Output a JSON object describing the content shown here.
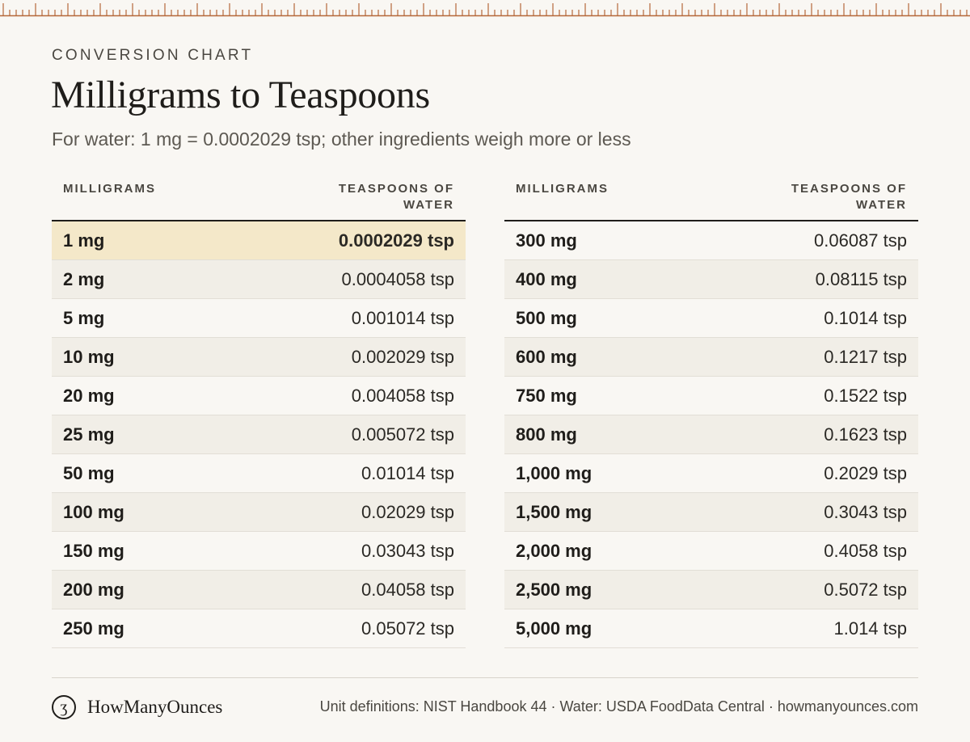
{
  "header": {
    "eyebrow": "CONVERSION CHART",
    "title": "Milligrams to Teaspoons",
    "subtitle": "For water: 1 mg = 0.0002029 tsp; other ingredients weigh more or less"
  },
  "table": {
    "col_mg": "MILLIGRAMS",
    "col_tsp_line1": "TEASPOONS OF",
    "col_tsp_line2": "WATER",
    "left_rows": [
      {
        "mg": "1 mg",
        "tsp": "0.0002029 tsp"
      },
      {
        "mg": "2 mg",
        "tsp": "0.0004058 tsp"
      },
      {
        "mg": "5 mg",
        "tsp": "0.001014 tsp"
      },
      {
        "mg": "10 mg",
        "tsp": "0.002029 tsp"
      },
      {
        "mg": "20 mg",
        "tsp": "0.004058 tsp"
      },
      {
        "mg": "25 mg",
        "tsp": "0.005072 tsp"
      },
      {
        "mg": "50 mg",
        "tsp": "0.01014 tsp"
      },
      {
        "mg": "100 mg",
        "tsp": "0.02029 tsp"
      },
      {
        "mg": "150 mg",
        "tsp": "0.03043 tsp"
      },
      {
        "mg": "200 mg",
        "tsp": "0.04058 tsp"
      },
      {
        "mg": "250 mg",
        "tsp": "0.05072 tsp"
      }
    ],
    "right_rows": [
      {
        "mg": "300 mg",
        "tsp": "0.06087 tsp"
      },
      {
        "mg": "400 mg",
        "tsp": "0.08115 tsp"
      },
      {
        "mg": "500 mg",
        "tsp": "0.1014 tsp"
      },
      {
        "mg": "600 mg",
        "tsp": "0.1217 tsp"
      },
      {
        "mg": "750 mg",
        "tsp": "0.1522 tsp"
      },
      {
        "mg": "800 mg",
        "tsp": "0.1623 tsp"
      },
      {
        "mg": "1,000 mg",
        "tsp": "0.2029 tsp"
      },
      {
        "mg": "1,500 mg",
        "tsp": "0.3043 tsp"
      },
      {
        "mg": "2,000 mg",
        "tsp": "0.4058 tsp"
      },
      {
        "mg": "2,500 mg",
        "tsp": "0.5072 tsp"
      },
      {
        "mg": "5,000 mg",
        "tsp": "1.014 tsp"
      }
    ]
  },
  "footer": {
    "logo_glyph": "ʒ",
    "logo_icon": "howmanyounces-logo-icon",
    "brand": "HowManyOunces",
    "sources": "Unit definitions: NIST Handbook 44 · Water: USDA FoodData Central · howmanyounces.com"
  },
  "colors": {
    "ruler": "#b5683a",
    "highlight_row": "#f4e8c9",
    "alt_row": "#f1eee7",
    "background": "#f9f7f3"
  }
}
